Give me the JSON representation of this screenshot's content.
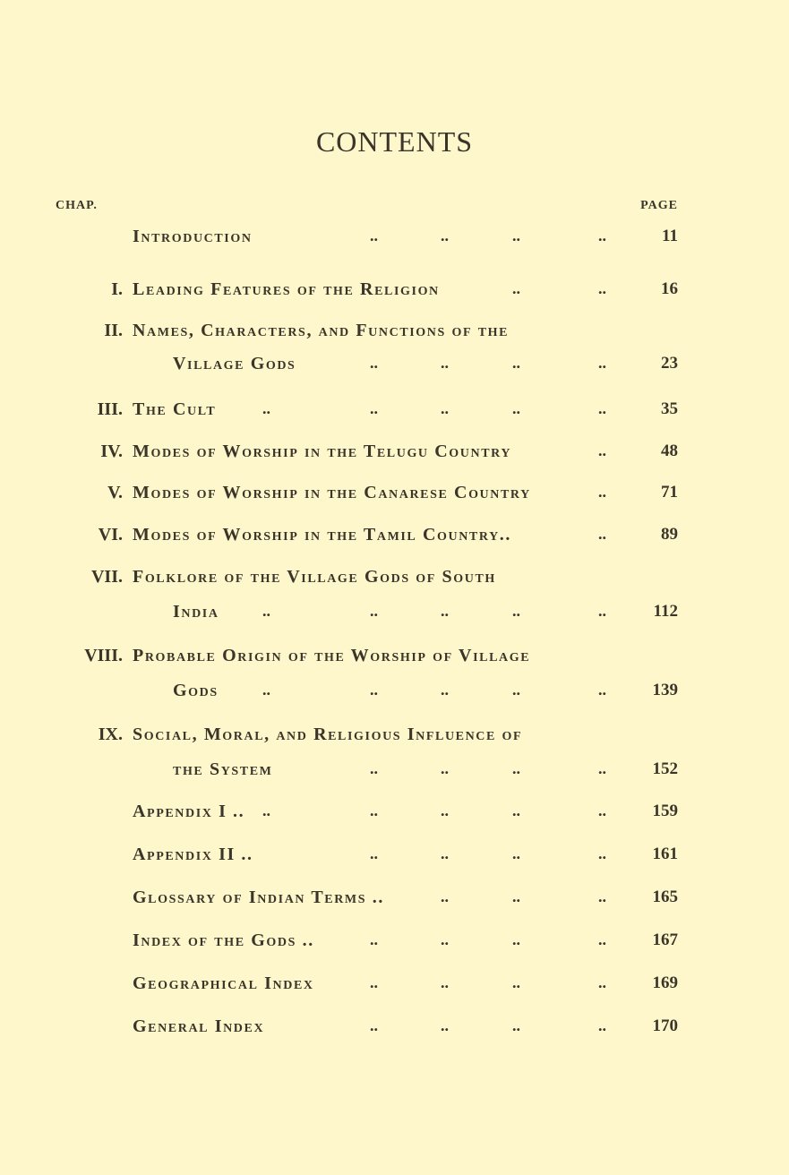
{
  "heading": "CONTENTS",
  "col_chap": "CHAP.",
  "col_page": "PAGE",
  "leader": "..",
  "entries": [
    {
      "num": "",
      "lines": [
        "Introduction"
      ],
      "page": "11"
    },
    {
      "num": "I.",
      "lines": [
        "Leading Features of the Religion"
      ],
      "page": "16"
    },
    {
      "num": "II.",
      "lines": [
        "Names, Characters, and Functions of the",
        "Village Gods"
      ],
      "page": "23"
    },
    {
      "num": "III.",
      "lines": [
        "The Cult"
      ],
      "page": "35"
    },
    {
      "num": "IV.",
      "lines": [
        "Modes of Worship in the Telugu Country"
      ],
      "page": "48"
    },
    {
      "num": "V.",
      "lines": [
        "Modes of Worship in the Canarese Country"
      ],
      "page": "71"
    },
    {
      "num": "VI.",
      "lines": [
        "Modes of Worship in the Tamil Country.."
      ],
      "page": "89"
    },
    {
      "num": "VII.",
      "lines": [
        "Folklore of the Village Gods of South",
        "India"
      ],
      "page": "112"
    },
    {
      "num": "VIII.",
      "lines": [
        "Probable Origin of the Worship of Village",
        "Gods"
      ],
      "page": "139"
    },
    {
      "num": "IX.",
      "lines": [
        "Social, Moral, and Religious Influence of",
        "the System"
      ],
      "page": "152"
    },
    {
      "num": "",
      "lines": [
        "Appendix I .."
      ],
      "page": "159"
    },
    {
      "num": "",
      "lines": [
        "Appendix II .."
      ],
      "page": "161"
    },
    {
      "num": "",
      "lines": [
        "Glossary of Indian Terms .."
      ],
      "page": "165"
    },
    {
      "num": "",
      "lines": [
        "Index of the Gods .."
      ],
      "page": "167"
    },
    {
      "num": "",
      "lines": [
        "Geographical Index"
      ],
      "page": "169"
    },
    {
      "num": "",
      "lines": [
        "General Index"
      ],
      "page": "170"
    }
  ]
}
